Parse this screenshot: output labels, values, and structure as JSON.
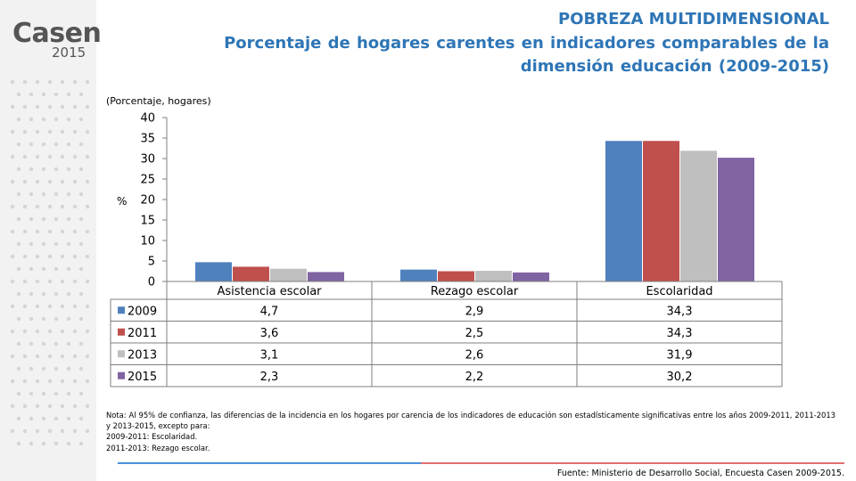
{
  "logo": {
    "main": "Casen",
    "year": "2015"
  },
  "header": {
    "title": "POBREZA MULTIDIMENSIONAL",
    "subtitle": "Porcentaje de hogares carentes en indicadores comparables de la dimensión educación (2009-2015)"
  },
  "chart_data": {
    "type": "bar",
    "unit_label": "(Porcentaje, hogares)",
    "ylabel": "%",
    "xlabel": "",
    "ylim": [
      0,
      40
    ],
    "yticks": [
      0,
      5,
      10,
      15,
      20,
      25,
      30,
      35,
      40
    ],
    "grid": false,
    "legend": "data-table",
    "categories": [
      "Asistencia escolar",
      "Rezago escolar",
      "Escolaridad"
    ],
    "series": [
      {
        "name": "2009",
        "color": "#4f81bd",
        "values": [
          4.7,
          2.9,
          34.3
        ],
        "labels": [
          "4,7",
          "2,9",
          "34,3"
        ]
      },
      {
        "name": "2011",
        "color": "#c0504d",
        "values": [
          3.6,
          2.5,
          34.3
        ],
        "labels": [
          "3,6",
          "2,5",
          "34,3"
        ]
      },
      {
        "name": "2013",
        "color": "#bfbfbf",
        "values": [
          3.1,
          2.6,
          31.9
        ],
        "labels": [
          "3,1",
          "2,6",
          "31,9"
        ]
      },
      {
        "name": "2015",
        "color": "#8064a2",
        "values": [
          2.3,
          2.2,
          30.2
        ],
        "labels": [
          "2,3",
          "2,2",
          "30,2"
        ]
      }
    ]
  },
  "note": {
    "text": "Nota: Al 95% de confianza, las diferencias de la incidencia en los hogares por carencia de los indicadores de educación son estadísticamente significativas entre los años 2009-2011, 2011-2013 y 2013-2015, excepto para:",
    "line1": "2009-2011: Escolaridad.",
    "line2": "2011-2013: Rezago escolar."
  },
  "footer": {
    "source": "Fuente: Ministerio de Desarrollo Social, Encuesta Casen 2009-2015."
  },
  "colors": {
    "title": "#2e75b6",
    "sidebar": "#f2f2f2",
    "dots": "#d5d5d5",
    "logo": "#555555"
  }
}
